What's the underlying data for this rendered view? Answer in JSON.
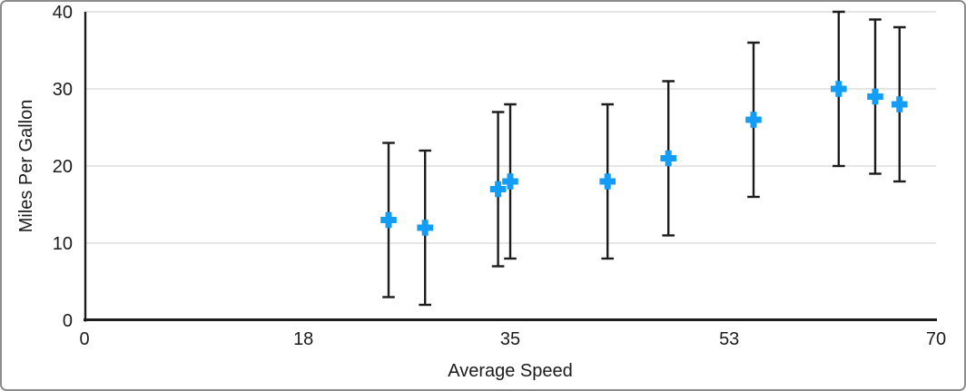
{
  "chart_data": {
    "type": "scatter",
    "title": "",
    "xlabel": "Average Speed",
    "ylabel": "Miles Per Gallon",
    "xlim": [
      0,
      70
    ],
    "ylim": [
      0,
      40
    ],
    "x_ticks": [
      0,
      18,
      35,
      53,
      70
    ],
    "y_ticks": [
      0,
      10,
      20,
      30,
      40
    ],
    "grid": "horizontal",
    "legend": "none",
    "marker": {
      "shape": "plus",
      "size": 17.6,
      "arm_thickness": 7
    },
    "error_bars": {
      "type": "fixed",
      "value": 10,
      "direction": "both",
      "caps": true
    },
    "points": [
      {
        "x": 25,
        "y": 13
      },
      {
        "x": 28,
        "y": 12
      },
      {
        "x": 34,
        "y": 17
      },
      {
        "x": 35,
        "y": 18
      },
      {
        "x": 43,
        "y": 18
      },
      {
        "x": 48,
        "y": 21
      },
      {
        "x": 55,
        "y": 26
      },
      {
        "x": 62,
        "y": 30
      },
      {
        "x": 65,
        "y": 29
      },
      {
        "x": 67,
        "y": 28
      }
    ],
    "colors": {
      "marker": "#149df7",
      "axis": "#1c1c1c",
      "error_bar": "#1c1c1c",
      "gridline": "#dddddd",
      "text": "#1b1b1b",
      "background": "#ffffff",
      "frame_border": "#8d8d8d"
    }
  }
}
